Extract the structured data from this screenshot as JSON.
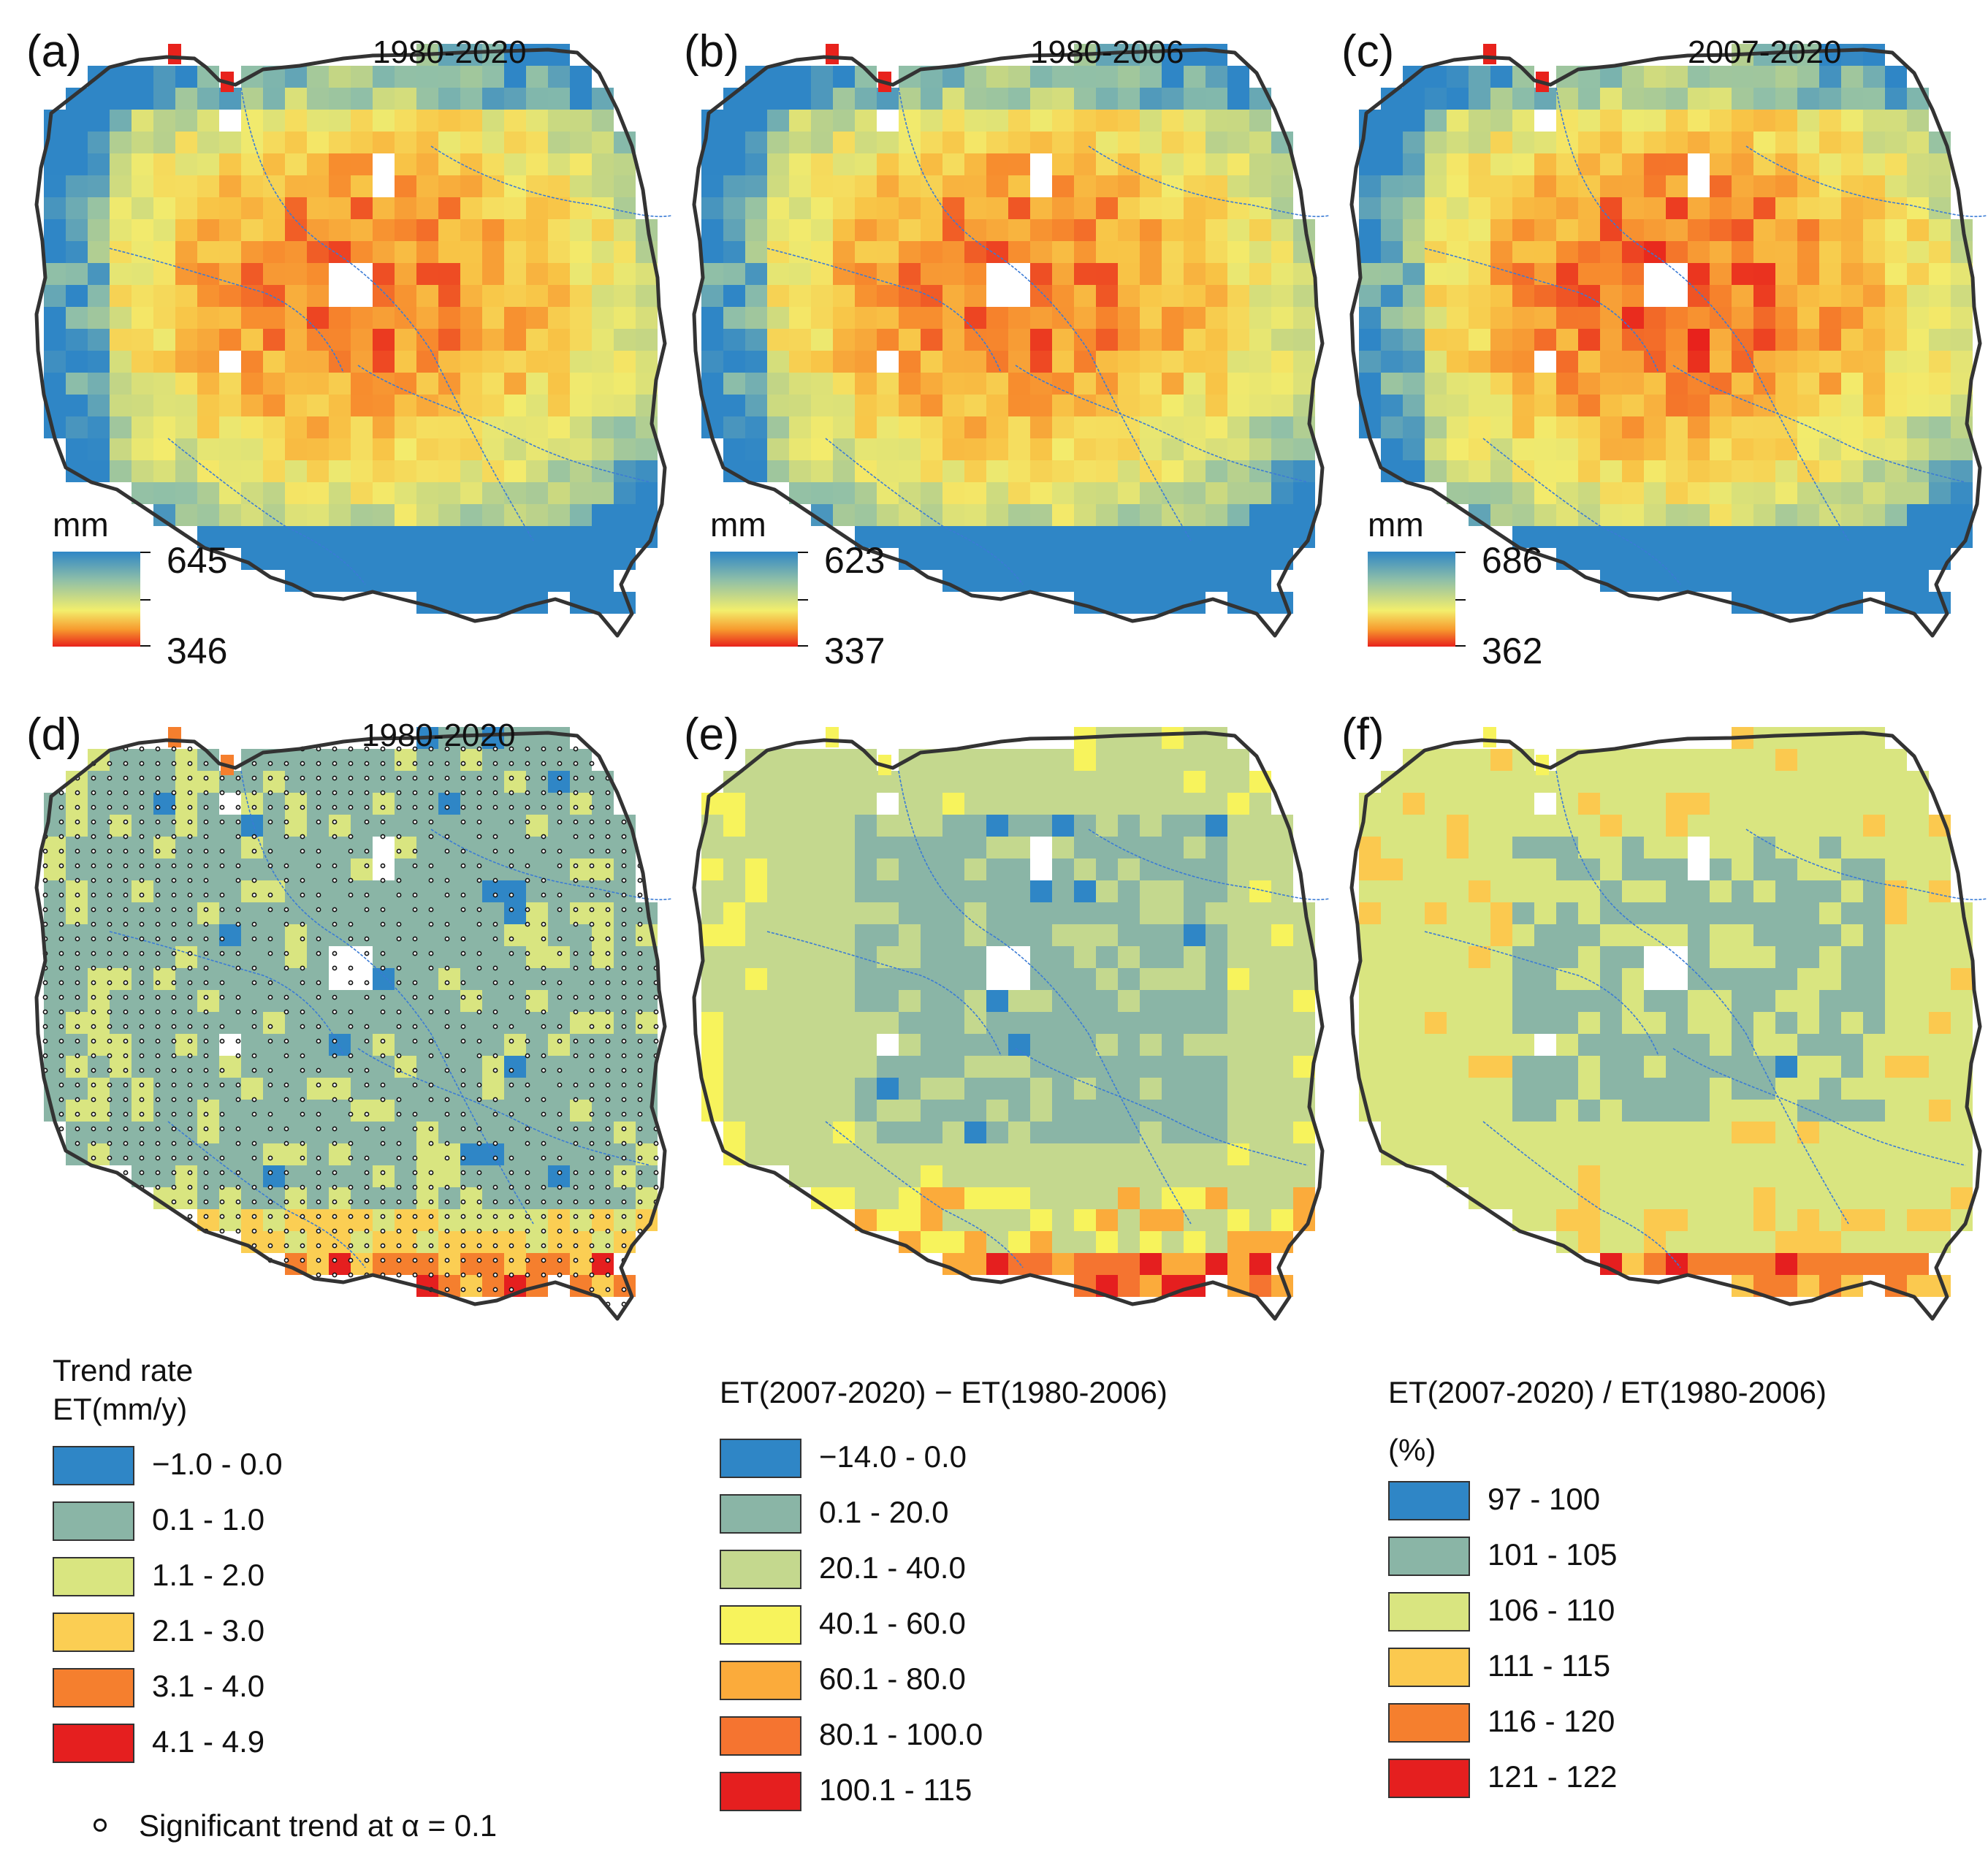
{
  "panels": [
    {
      "label": "(a)",
      "period": "1980-2020",
      "unit": "mm",
      "max": "645",
      "min": "346",
      "scheme": "ramp"
    },
    {
      "label": "(b)",
      "period": "1980-2006",
      "unit": "mm",
      "max": "623",
      "min": "337",
      "scheme": "ramp"
    },
    {
      "label": "(c)",
      "period": "2007-2020",
      "unit": "mm",
      "max": "686",
      "min": "362",
      "scheme": "ramp"
    },
    {
      "label": "(d)",
      "period": "1980-2020",
      "scheme": "trend"
    },
    {
      "label": "(e)",
      "period": "",
      "scheme": "diff"
    },
    {
      "label": "(f)",
      "period": "",
      "scheme": "ratio"
    }
  ],
  "legends": {
    "trend": {
      "title_line1": "Trend rate",
      "title_line2": "ET(mm/y)",
      "items": [
        {
          "label": "−1.0 - 0.0",
          "color": "#2f86c6"
        },
        {
          "label": "0.1 - 1.0",
          "color": "#8ab5a6"
        },
        {
          "label": "1.1 - 2.0",
          "color": "#d9e580"
        },
        {
          "label": "2.1 - 3.0",
          "color": "#fbce53"
        },
        {
          "label": "3.1 - 4.0",
          "color": "#f57f2e"
        },
        {
          "label": "4.1 - 4.9",
          "color": "#e51f1f"
        }
      ],
      "significance": "Significant trend at α = 0.1"
    },
    "diff": {
      "title": "ET(2007-2020) − ET(1980-2006)",
      "items": [
        {
          "label": "−14.0 - 0.0",
          "color": "#2f86c6"
        },
        {
          "label": "0.1 - 20.0",
          "color": "#8ab5a6"
        },
        {
          "label": "20.1 - 40.0",
          "color": "#c4d88e"
        },
        {
          "label": "40.1 - 60.0",
          "color": "#f7f35c"
        },
        {
          "label": "60.1 - 80.0",
          "color": "#fbab3b"
        },
        {
          "label": "80.1 - 100.0",
          "color": "#f57430"
        },
        {
          "label": "100.1 - 115",
          "color": "#e51f1f"
        }
      ]
    },
    "ratio": {
      "title": "ET(2007-2020) / ET(1980-2006)",
      "unit": "(%)",
      "items": [
        {
          "label": "97 - 100",
          "color": "#2f86c6"
        },
        {
          "label": "101 - 105",
          "color": "#8ab5a6"
        },
        {
          "label": "106 - 110",
          "color": "#d9e580"
        },
        {
          "label": "111 - 115",
          "color": "#fbc94f"
        },
        {
          "label": "116 - 120",
          "color": "#f57f2e"
        },
        {
          "label": "121 - 122",
          "color": "#e51f1f"
        }
      ]
    }
  }
}
